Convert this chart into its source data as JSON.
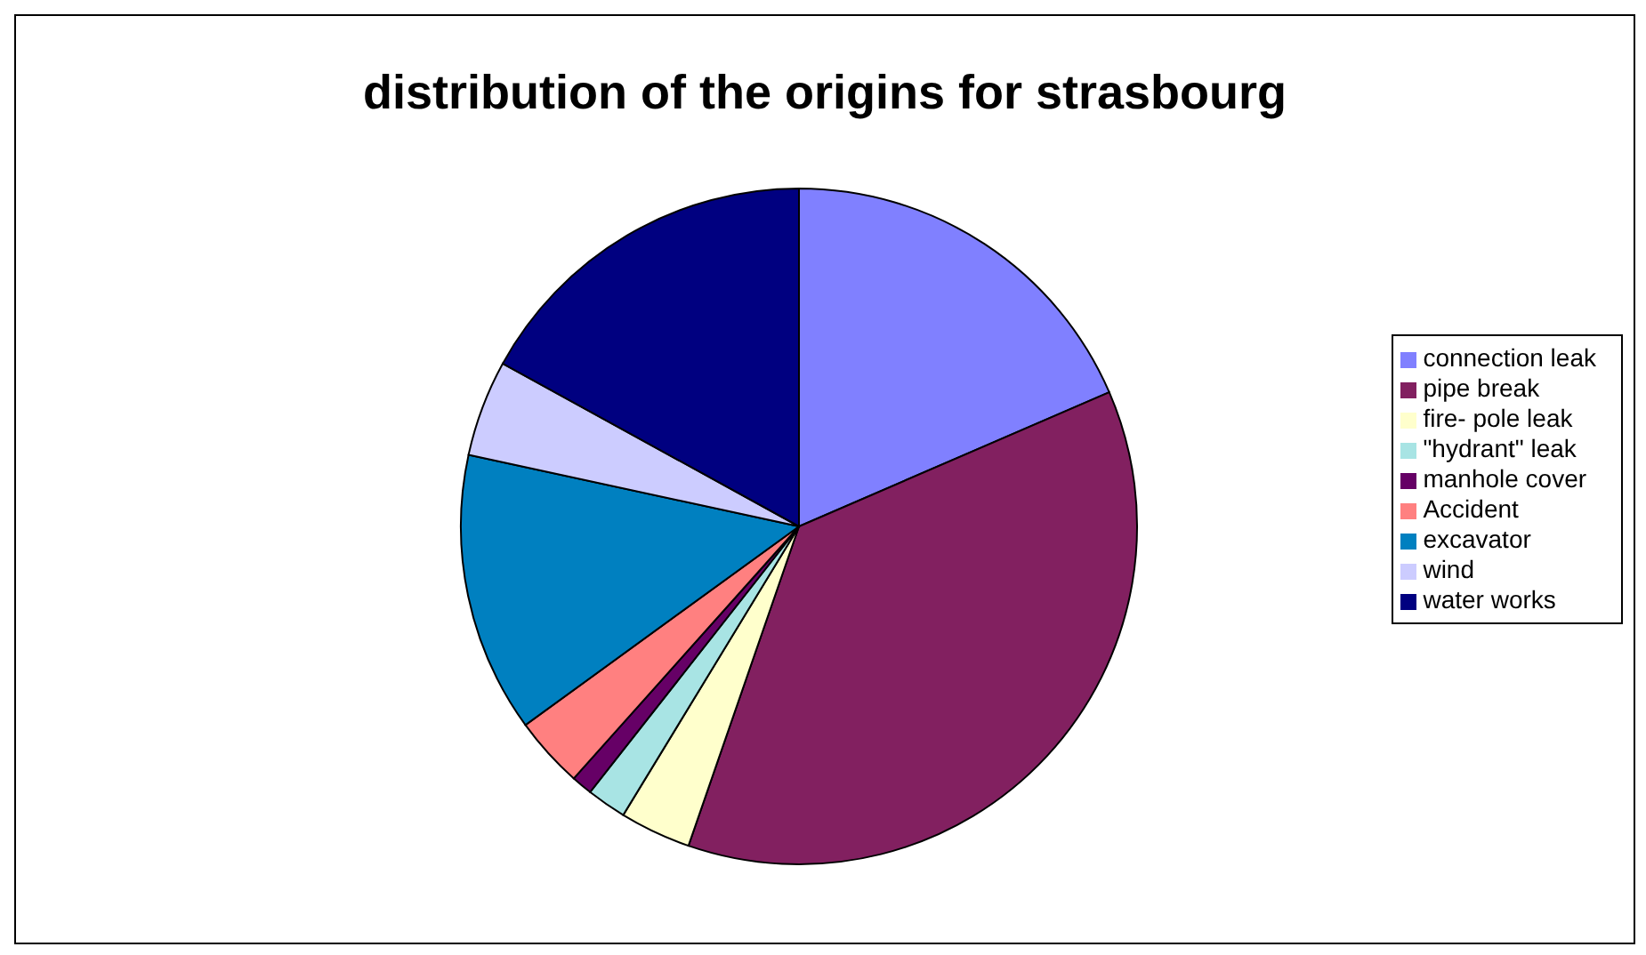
{
  "chart_data": {
    "type": "pie",
    "title": "distribution of the origins for strasbourg",
    "categories": [
      "connection leak",
      "pipe break",
      "fire- pole leak",
      "\"hydrant\" leak",
      "manhole cover",
      "Accident",
      "excavator",
      "wind",
      "water works"
    ],
    "values": [
      18.5,
      36.8,
      3.4,
      1.9,
      1.0,
      3.4,
      13.4,
      4.6,
      17.0
    ],
    "colors": [
      "#8080ff",
      "#822060",
      "#ffffcc",
      "#a8e4e4",
      "#660066",
      "#ff8080",
      "#0080c0",
      "#ccccff",
      "#000080"
    ],
    "legend": "right"
  }
}
